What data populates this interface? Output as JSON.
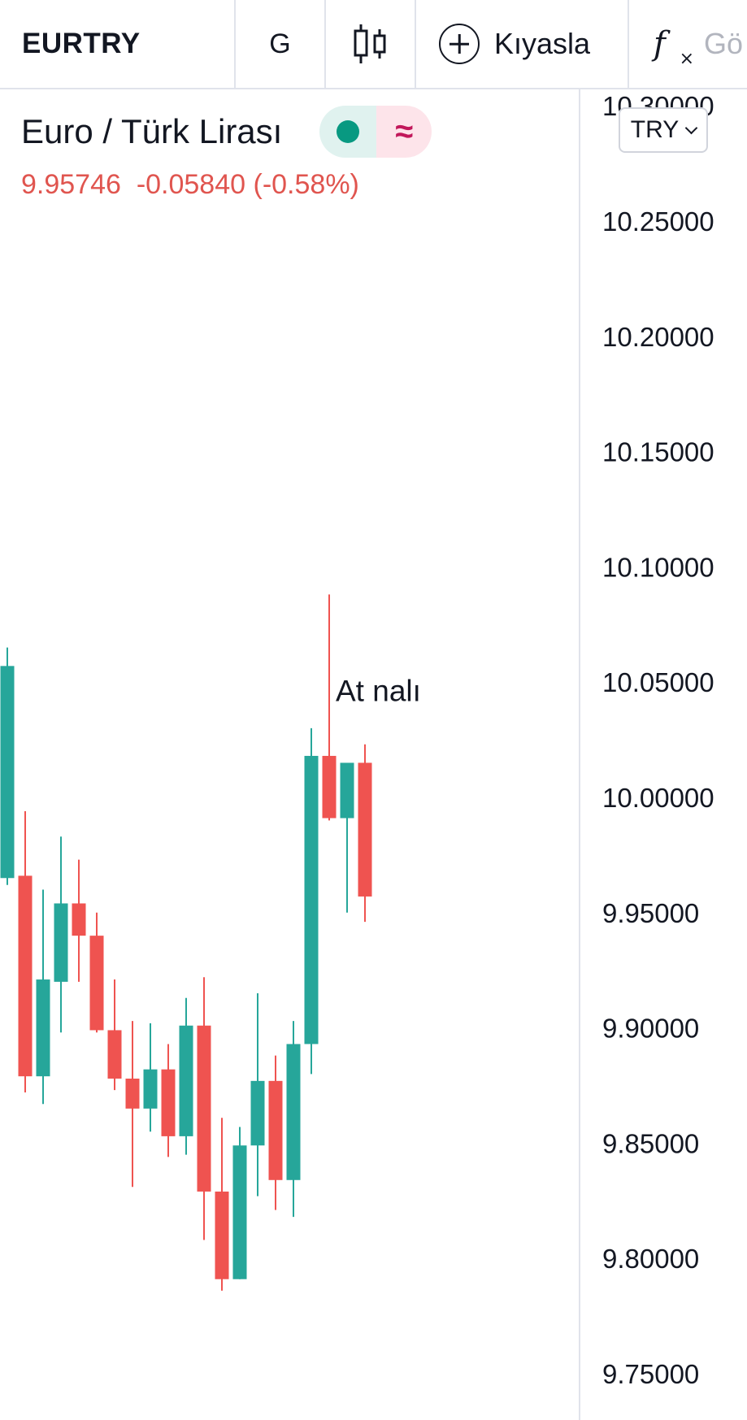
{
  "toolbar": {
    "symbol": "EURTRY",
    "interval": "G",
    "chart_type_icon": "candles-icon",
    "compare_label": "Kıyasla",
    "indicators_label": "Gö"
  },
  "legend": {
    "title": "Euro / Türk Lirası",
    "status_icon": "market-status-dot-icon",
    "wave_icon": "approx-wave-icon",
    "wave_glyph": "≈",
    "last": "9.95746",
    "change": "-0.05840",
    "change_pct": "(-0.58%)"
  },
  "currency_selector": {
    "label": "TRY"
  },
  "colors": {
    "up": "#26a69a",
    "down": "#ef5350",
    "text": "#131722",
    "grid_border": "#e0e3eb"
  },
  "chart_data": {
    "type": "candlestick",
    "y_axis": {
      "position": "right",
      "ticks": [
        "10.30000",
        "10.25000",
        "10.20000",
        "10.15000",
        "10.10000",
        "10.05000",
        "10.00000",
        "9.95000",
        "9.90000",
        "9.85000",
        "9.80000",
        "9.75000"
      ],
      "range": [
        9.73,
        10.3
      ]
    },
    "candles": [
      {
        "o": 9.965,
        "h": 10.065,
        "l": 9.962,
        "c": 10.057
      },
      {
        "o": 9.966,
        "h": 9.994,
        "l": 9.872,
        "c": 9.879
      },
      {
        "o": 9.879,
        "h": 9.96,
        "l": 9.867,
        "c": 9.921
      },
      {
        "o": 9.92,
        "h": 9.983,
        "l": 9.898,
        "c": 9.954
      },
      {
        "o": 9.954,
        "h": 9.973,
        "l": 9.92,
        "c": 9.94
      },
      {
        "o": 9.94,
        "h": 9.95,
        "l": 9.898,
        "c": 9.899
      },
      {
        "o": 9.899,
        "h": 9.921,
        "l": 9.873,
        "c": 9.878
      },
      {
        "o": 9.878,
        "h": 9.903,
        "l": 9.831,
        "c": 9.865
      },
      {
        "o": 9.865,
        "h": 9.902,
        "l": 9.855,
        "c": 9.882
      },
      {
        "o": 9.882,
        "h": 9.893,
        "l": 9.844,
        "c": 9.853
      },
      {
        "o": 9.853,
        "h": 9.913,
        "l": 9.845,
        "c": 9.901
      },
      {
        "o": 9.901,
        "h": 9.922,
        "l": 9.808,
        "c": 9.829
      },
      {
        "o": 9.829,
        "h": 9.861,
        "l": 9.786,
        "c": 9.791
      },
      {
        "o": 9.791,
        "h": 9.857,
        "l": 9.791,
        "c": 9.849
      },
      {
        "o": 9.849,
        "h": 9.915,
        "l": 9.827,
        "c": 9.877
      },
      {
        "o": 9.877,
        "h": 9.888,
        "l": 9.821,
        "c": 9.834
      },
      {
        "o": 9.834,
        "h": 9.903,
        "l": 9.818,
        "c": 9.893
      },
      {
        "o": 9.893,
        "h": 10.03,
        "l": 9.88,
        "c": 10.018
      },
      {
        "o": 10.018,
        "h": 10.088,
        "l": 9.99,
        "c": 9.991
      },
      {
        "o": 9.991,
        "h": 10.015,
        "l": 9.95,
        "c": 10.015
      },
      {
        "o": 10.015,
        "h": 10.023,
        "l": 9.946,
        "c": 9.957
      }
    ],
    "annotations": [
      {
        "text": "At nalı",
        "candle_index": 18,
        "price": 10.04
      }
    ]
  }
}
